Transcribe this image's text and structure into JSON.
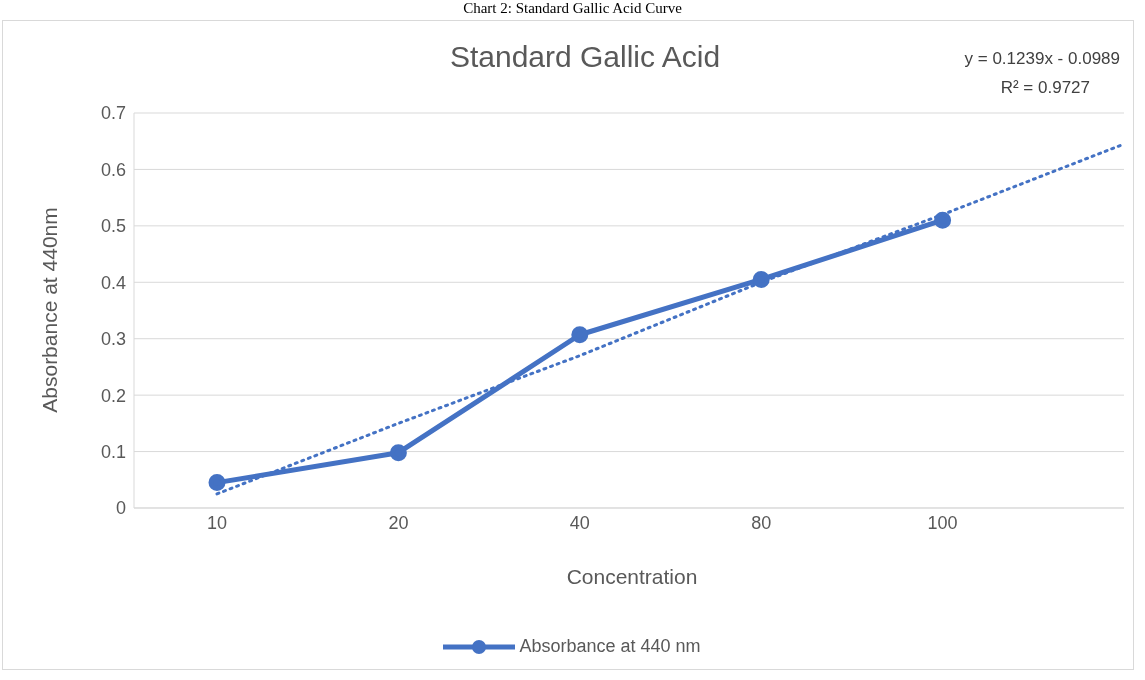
{
  "chart_data": {
    "type": "line",
    "title": "Standard Gallic Acid",
    "xlabel": "Concentration",
    "ylabel": "Absorbance at 440nm",
    "annotations": [
      "Chart 2: Standard Gallic Acid Curve",
      "y = 0.1239x - 0.0989",
      "R² = 0.9727"
    ],
    "categories": [
      "10",
      "20",
      "40",
      "80",
      "100",
      null
    ],
    "series": [
      {
        "name": "Absorbance at 440 nm",
        "color": "#4472c4",
        "values": [
          0.045,
          0.098,
          0.307,
          0.405,
          0.51,
          null
        ],
        "marker": "circle",
        "line_style": "solid"
      },
      {
        "type": "line",
        "color": "#4472c4",
        "values": [
          0.025,
          0.15,
          0.27,
          0.4,
          0.52,
          0.645
        ],
        "marker": "none",
        "line_style": "dotted"
      }
    ],
    "ylim": [
      0,
      0.7
    ],
    "yticks": [
      0,
      0.1,
      0.2,
      0.3,
      0.4,
      0.5,
      0.6,
      0.7
    ],
    "grid": "y",
    "legend": "bottom"
  }
}
